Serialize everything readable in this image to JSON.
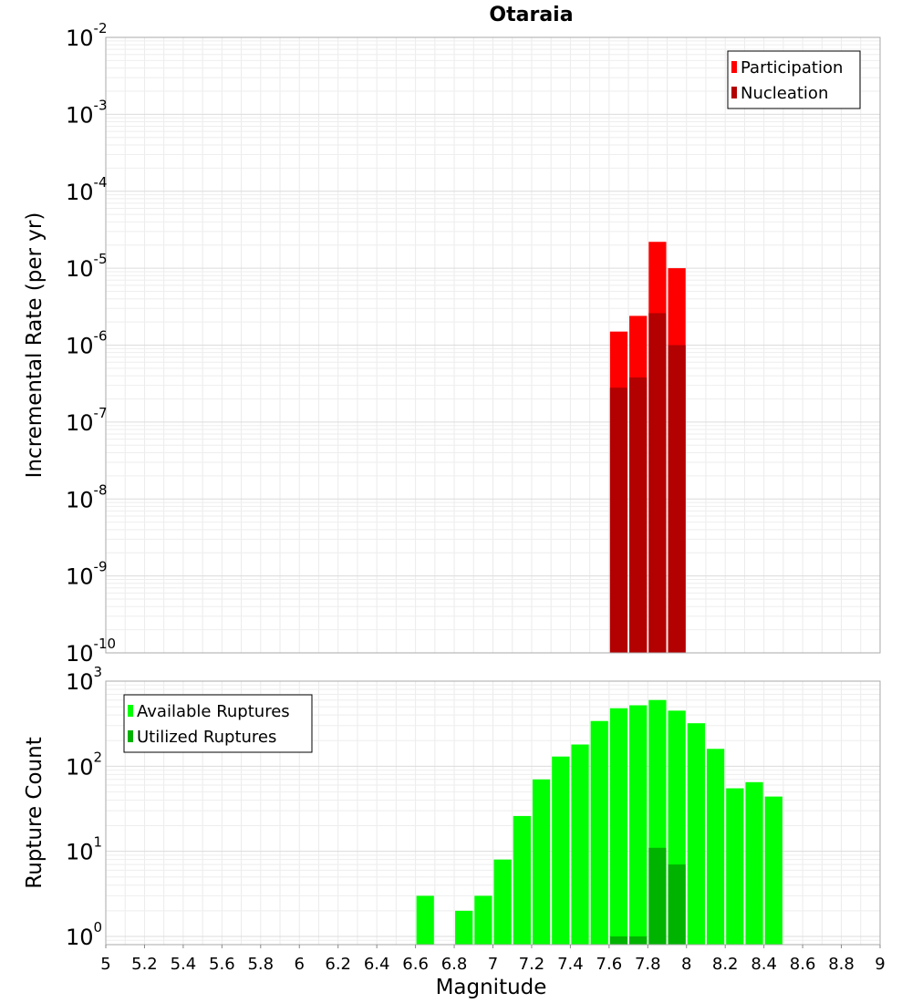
{
  "chart_data": [
    {
      "type": "bar",
      "title": "Otaraia",
      "xlabel": "",
      "ylabel": "Incremental Rate (per yr)",
      "yscale": "log",
      "ylim": [
        1e-10,
        0.01
      ],
      "xlim": [
        5,
        9
      ],
      "grid": true,
      "legend_position": "top-right",
      "bin_width": 0.1,
      "y_tick_labels": [
        {
          "base": "10",
          "exp": "-2",
          "value": 0.01
        },
        {
          "base": "10",
          "exp": "-3",
          "value": 0.001
        },
        {
          "base": "10",
          "exp": "-4",
          "value": 0.0001
        },
        {
          "base": "10",
          "exp": "-5",
          "value": 1e-05
        },
        {
          "base": "10",
          "exp": "-6",
          "value": 1e-06
        },
        {
          "base": "10",
          "exp": "-7",
          "value": 1e-07
        },
        {
          "base": "10",
          "exp": "-8",
          "value": 1e-08
        },
        {
          "base": "10",
          "exp": "-9",
          "value": 1e-09
        },
        {
          "base": "10",
          "exp": "-10",
          "value": 1e-10
        }
      ],
      "series": [
        {
          "name": "Participation",
          "color": "#ff0000",
          "x": [
            7.65,
            7.75,
            7.85,
            7.95
          ],
          "values": [
            1.5e-06,
            2.4e-06,
            2.2e-05,
            1e-05
          ]
        },
        {
          "name": "Nucleation",
          "color": "#b30000",
          "x": [
            7.65,
            7.75,
            7.85,
            7.95
          ],
          "values": [
            2.8e-07,
            3.8e-07,
            2.6e-06,
            1e-06
          ]
        }
      ]
    },
    {
      "type": "bar",
      "title": "",
      "xlabel": "Magnitude",
      "ylabel": "Rupture Count",
      "yscale": "log",
      "ylim": [
        0.8,
        1000
      ],
      "xlim": [
        5,
        9
      ],
      "grid": true,
      "legend_position": "top-left",
      "bin_width": 0.1,
      "x_tick_labels": [
        "5",
        "5.2",
        "5.4",
        "5.6",
        "5.8",
        "6",
        "6.2",
        "6.4",
        "6.6",
        "6.8",
        "7",
        "7.2",
        "7.4",
        "7.6",
        "7.8",
        "8",
        "8.2",
        "8.4",
        "8.6",
        "8.8",
        "9"
      ],
      "y_tick_labels": [
        {
          "base": "10",
          "exp": "3",
          "value": 1000
        },
        {
          "base": "10",
          "exp": "2",
          "value": 100
        },
        {
          "base": "10",
          "exp": "1",
          "value": 10
        },
        {
          "base": "10",
          "exp": "0",
          "value": 1
        }
      ],
      "series": [
        {
          "name": "Available Ruptures",
          "color": "#00ff00",
          "x": [
            6.65,
            6.85,
            6.95,
            7.05,
            7.15,
            7.25,
            7.35,
            7.45,
            7.55,
            7.65,
            7.75,
            7.85,
            7.95,
            8.05,
            8.15,
            8.25,
            8.35,
            8.45
          ],
          "values": [
            3,
            2,
            3,
            8,
            26,
            70,
            130,
            180,
            340,
            480,
            520,
            600,
            450,
            320,
            160,
            55,
            65,
            44
          ]
        },
        {
          "name": "Utilized Ruptures",
          "color": "#00b300",
          "x": [
            7.65,
            7.75,
            7.85,
            7.95
          ],
          "values": [
            1,
            1,
            11,
            7
          ]
        }
      ]
    }
  ]
}
